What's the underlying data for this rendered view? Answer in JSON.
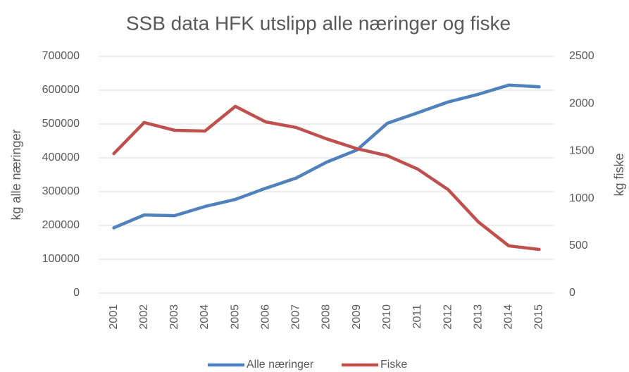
{
  "chart_data": {
    "type": "line",
    "title": "SSB data HFK utslipp alle næringer og fiske",
    "y_label": "kg alle næringer",
    "y2_label": "kg fiske",
    "categories": [
      "2001",
      "2002",
      "2003",
      "2004",
      "2005",
      "2006",
      "2007",
      "2008",
      "2009",
      "2010",
      "2011",
      "2012",
      "2013",
      "2014",
      "2015"
    ],
    "series": [
      {
        "name": "Alle næringer",
        "color": "#4f81bd",
        "values": [
          193000,
          231000,
          229000,
          256000,
          277000,
          310000,
          340000,
          387000,
          423000,
          502000,
          533000,
          565000,
          588000,
          615000,
          610000
        ]
      },
      {
        "name": "Fiske",
        "color": "#c0504d",
        "axis": "y2",
        "values": [
          1473,
          1801,
          1719,
          1711,
          1972,
          1808,
          1749,
          1629,
          1525,
          1451,
          1310,
          1094,
          751,
          499,
          461
        ]
      }
    ],
    "ylim": [
      0,
      700000
    ],
    "yticks": [
      0,
      100000,
      200000,
      300000,
      400000,
      500000,
      600000,
      700000
    ],
    "y2lim": [
      0,
      2500
    ],
    "y2ticks": [
      0,
      500,
      1000,
      1500,
      2000,
      2500
    ],
    "grid": true,
    "legend": "bottom"
  }
}
